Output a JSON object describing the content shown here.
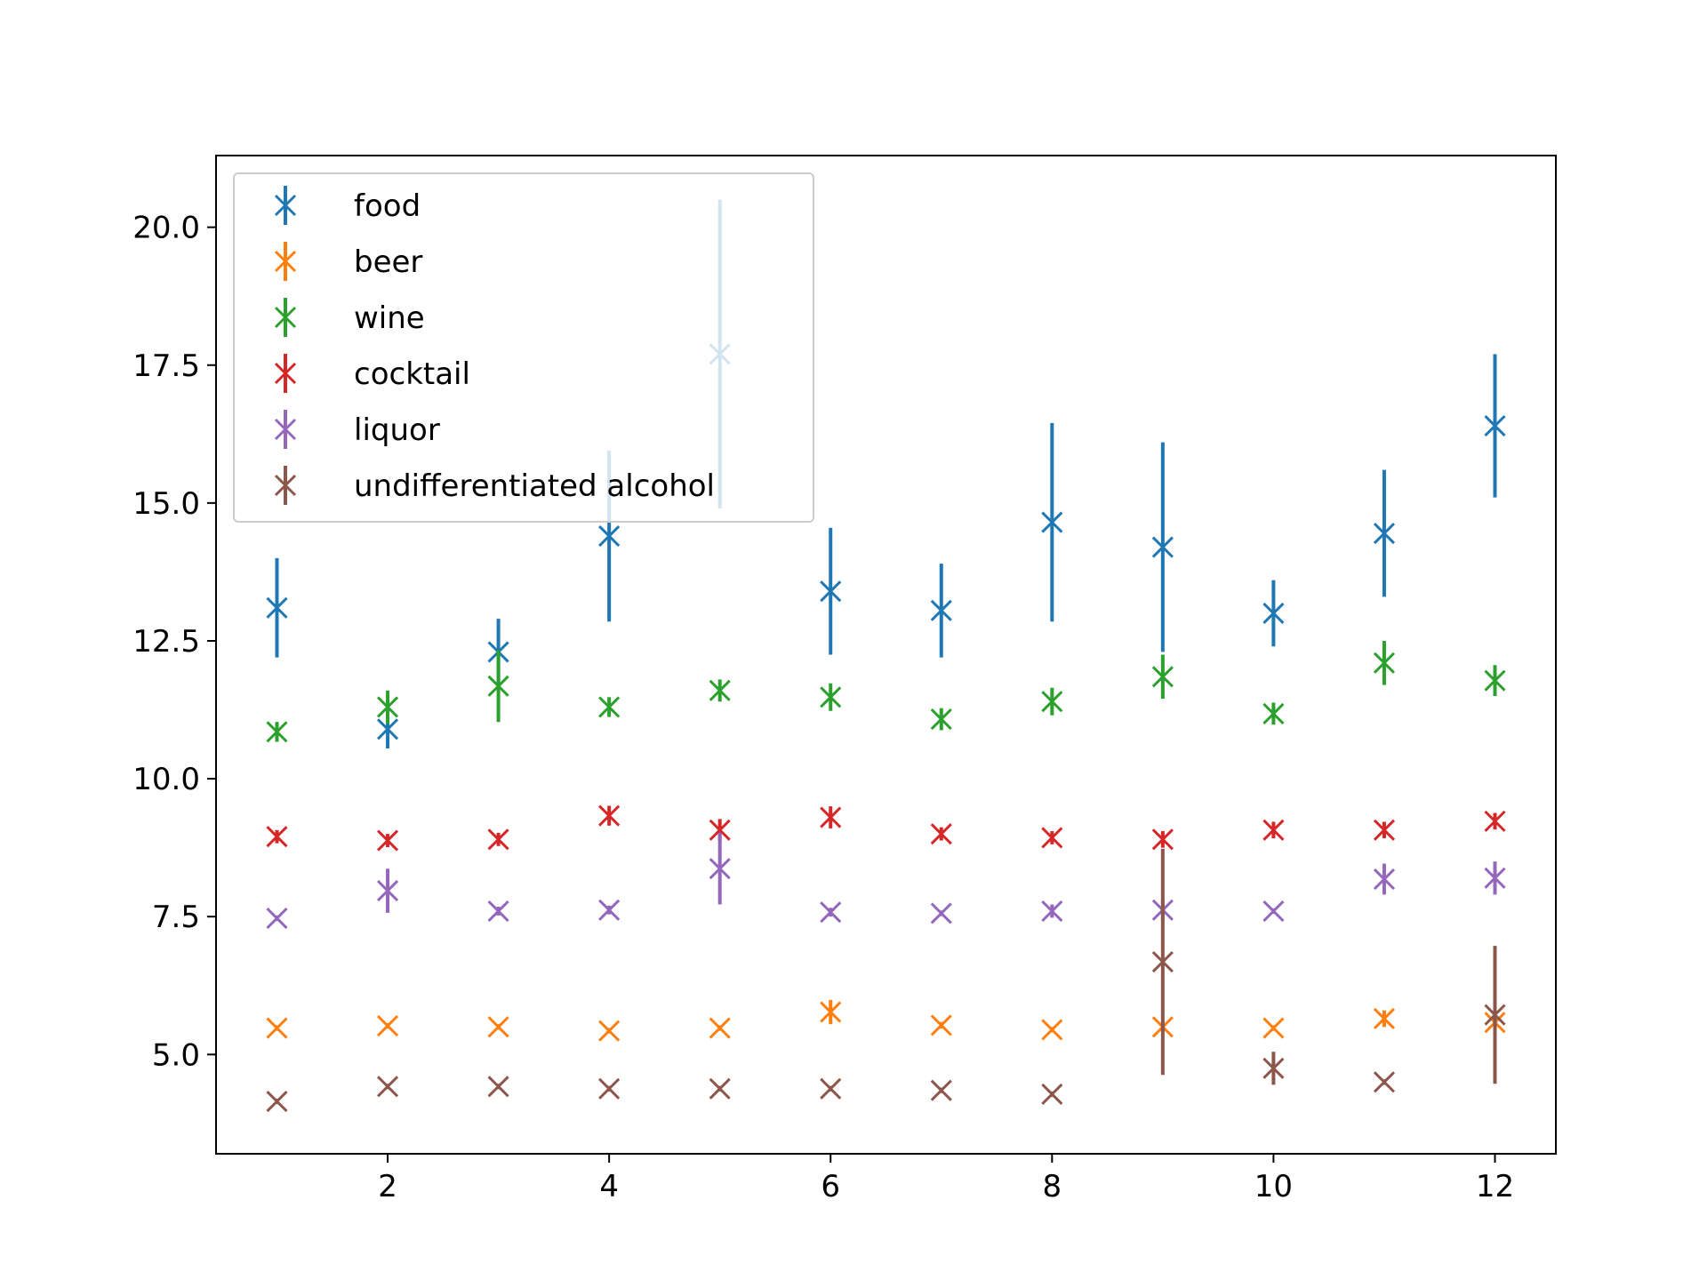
{
  "chart_data": {
    "type": "scatter",
    "title": "",
    "xlabel": "",
    "ylabel": "",
    "xlim": [
      0.45,
      12.55
    ],
    "ylim": [
      3.2,
      21.3
    ],
    "xticks": [
      2,
      4,
      6,
      8,
      10,
      12
    ],
    "yticks": [
      5.0,
      7.5,
      10.0,
      12.5,
      15.0,
      17.5,
      20.0
    ],
    "x": [
      1,
      2,
      3,
      4,
      5,
      6,
      7,
      8,
      9,
      10,
      11,
      12
    ],
    "marker": "x",
    "errorbars": "vertical",
    "legend_position": "upper-left",
    "series": [
      {
        "name": "food",
        "color": "#1f77b4",
        "values": [
          13.1,
          10.9,
          12.3,
          14.4,
          17.7,
          13.4,
          13.05,
          14.65,
          14.2,
          13.0,
          14.45,
          16.4
        ],
        "errors": [
          0.9,
          0.35,
          0.6,
          1.55,
          2.8,
          1.15,
          0.85,
          1.8,
          1.9,
          0.6,
          1.15,
          1.3
        ]
      },
      {
        "name": "beer",
        "color": "#ff7f0e",
        "values": [
          5.48,
          5.52,
          5.5,
          5.43,
          5.48,
          5.77,
          5.53,
          5.45,
          5.5,
          5.48,
          5.65,
          5.58
        ],
        "errors": [
          0.05,
          0.05,
          0.05,
          0.05,
          0.05,
          0.22,
          0.06,
          0.05,
          0.08,
          0.05,
          0.15,
          0.2
        ]
      },
      {
        "name": "wine",
        "color": "#2ca02c",
        "values": [
          10.85,
          11.3,
          11.68,
          11.3,
          11.6,
          11.48,
          11.08,
          11.4,
          11.85,
          11.18,
          12.1,
          11.78
        ],
        "errors": [
          0.18,
          0.3,
          0.65,
          0.18,
          0.2,
          0.25,
          0.2,
          0.25,
          0.4,
          0.2,
          0.4,
          0.28
        ]
      },
      {
        "name": "cocktail",
        "color": "#d62728",
        "values": [
          8.95,
          8.88,
          8.9,
          9.33,
          9.07,
          9.3,
          9.0,
          8.93,
          8.9,
          9.07,
          9.07,
          9.23
        ],
        "errors": [
          0.12,
          0.12,
          0.12,
          0.18,
          0.2,
          0.2,
          0.12,
          0.12,
          0.15,
          0.15,
          0.15,
          0.15
        ]
      },
      {
        "name": "liquor",
        "color": "#9467bd",
        "values": [
          7.47,
          7.97,
          7.6,
          7.62,
          8.37,
          7.58,
          7.56,
          7.6,
          7.62,
          7.6,
          8.18,
          8.2
        ],
        "errors": [
          0.05,
          0.4,
          0.08,
          0.08,
          0.65,
          0.08,
          0.05,
          0.12,
          0.2,
          0.05,
          0.28,
          0.3
        ]
      },
      {
        "name": "undifferentiated alcohol",
        "color": "#8c564b",
        "values": [
          4.15,
          4.42,
          4.42,
          4.38,
          4.38,
          4.38,
          4.35,
          4.28,
          6.68,
          4.75,
          4.5,
          5.72
        ],
        "errors": [
          0.05,
          0.05,
          0.05,
          0.05,
          0.05,
          0.05,
          0.05,
          0.05,
          2.05,
          0.3,
          0.05,
          1.25
        ]
      }
    ]
  }
}
